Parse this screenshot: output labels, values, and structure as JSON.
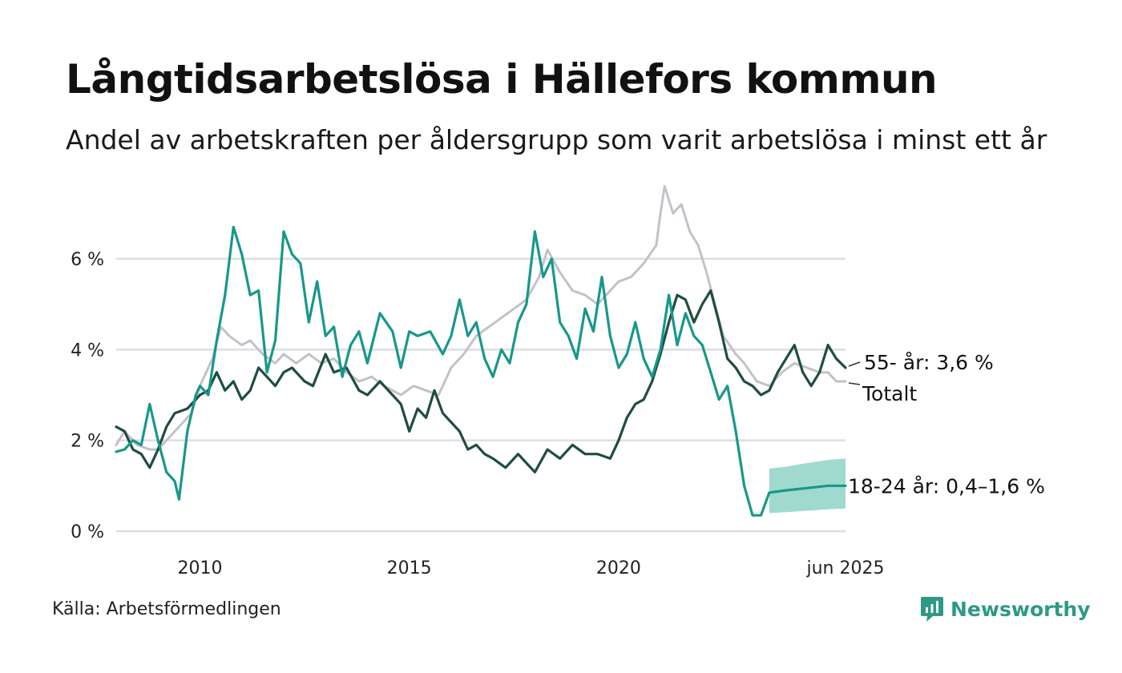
{
  "title": "Långtidsarbetslösa i Hällefors kommun",
  "subtitle": "Andel av arbetskraften per åldersgrupp som varit arbetslösa i minst ett år",
  "source": "Källa: Arbetsförmedlingen",
  "brand": {
    "name": "Newsworthy",
    "icon": "newsworthy-logo-icon"
  },
  "colors": {
    "totalt": "#c3c2cb",
    "age55": "#1f4d40",
    "age18_24": "#17988a",
    "band": "#8fd3c6",
    "grid": "#dedee2"
  },
  "chart_data": {
    "type": "line",
    "y_unit": "%",
    "ylim": [
      0,
      7.5
    ],
    "yticks": [
      {
        "value": 0,
        "label": "0 %"
      },
      {
        "value": 2,
        "label": "2 %"
      },
      {
        "value": 4,
        "label": "4 %"
      },
      {
        "value": 6,
        "label": "6 %"
      }
    ],
    "xlim": [
      2008.0,
      2025.42
    ],
    "xticks": [
      {
        "value": 2010,
        "label": "2010"
      },
      {
        "value": 2015,
        "label": "2015"
      },
      {
        "value": 2020,
        "label": "2020"
      },
      {
        "value": 2025.42,
        "label": "jun 2025"
      }
    ],
    "grid": true,
    "series": [
      {
        "key": "totalt",
        "label": "Totalt",
        "points": [
          [
            2008.0,
            1.9
          ],
          [
            2008.2,
            2.2
          ],
          [
            2008.5,
            1.9
          ],
          [
            2008.8,
            1.8
          ],
          [
            2009.0,
            1.8
          ],
          [
            2009.3,
            2.1
          ],
          [
            2009.6,
            2.4
          ],
          [
            2009.8,
            2.6
          ],
          [
            2010.0,
            3.2
          ],
          [
            2010.3,
            3.8
          ],
          [
            2010.5,
            4.5
          ],
          [
            2010.7,
            4.3
          ],
          [
            2011.0,
            4.1
          ],
          [
            2011.2,
            4.2
          ],
          [
            2011.5,
            3.9
          ],
          [
            2011.8,
            3.7
          ],
          [
            2012.0,
            3.9
          ],
          [
            2012.3,
            3.7
          ],
          [
            2012.6,
            3.9
          ],
          [
            2012.9,
            3.7
          ],
          [
            2013.2,
            3.8
          ],
          [
            2013.5,
            3.5
          ],
          [
            2013.8,
            3.3
          ],
          [
            2014.1,
            3.4
          ],
          [
            2014.4,
            3.2
          ],
          [
            2014.8,
            3.0
          ],
          [
            2015.1,
            3.2
          ],
          [
            2015.4,
            3.1
          ],
          [
            2015.7,
            3.0
          ],
          [
            2016.0,
            3.6
          ],
          [
            2016.3,
            3.9
          ],
          [
            2016.6,
            4.3
          ],
          [
            2016.9,
            4.5
          ],
          [
            2017.2,
            4.7
          ],
          [
            2017.5,
            4.9
          ],
          [
            2017.8,
            5.1
          ],
          [
            2018.1,
            5.6
          ],
          [
            2018.3,
            6.2
          ],
          [
            2018.6,
            5.7
          ],
          [
            2018.9,
            5.3
          ],
          [
            2019.2,
            5.2
          ],
          [
            2019.5,
            5.0
          ],
          [
            2019.8,
            5.3
          ],
          [
            2020.0,
            5.5
          ],
          [
            2020.3,
            5.6
          ],
          [
            2020.6,
            5.9
          ],
          [
            2020.9,
            6.3
          ],
          [
            2021.0,
            7.0
          ],
          [
            2021.1,
            7.6
          ],
          [
            2021.3,
            7.0
          ],
          [
            2021.5,
            7.2
          ],
          [
            2021.7,
            6.6
          ],
          [
            2021.9,
            6.3
          ],
          [
            2022.1,
            5.7
          ],
          [
            2022.3,
            5.0
          ],
          [
            2022.5,
            4.3
          ],
          [
            2022.8,
            3.9
          ],
          [
            2023.0,
            3.7
          ],
          [
            2023.3,
            3.3
          ],
          [
            2023.6,
            3.2
          ],
          [
            2023.9,
            3.5
          ],
          [
            2024.2,
            3.7
          ],
          [
            2024.5,
            3.6
          ],
          [
            2024.8,
            3.5
          ],
          [
            2025.0,
            3.5
          ],
          [
            2025.2,
            3.3
          ],
          [
            2025.42,
            3.3
          ]
        ]
      },
      {
        "key": "age55",
        "label": "55- år: 3,6 %",
        "points": [
          [
            2008.0,
            2.3
          ],
          [
            2008.2,
            2.2
          ],
          [
            2008.4,
            1.8
          ],
          [
            2008.6,
            1.7
          ],
          [
            2008.8,
            1.4
          ],
          [
            2009.0,
            1.8
          ],
          [
            2009.2,
            2.3
          ],
          [
            2009.4,
            2.6
          ],
          [
            2009.7,
            2.7
          ],
          [
            2010.0,
            3.0
          ],
          [
            2010.2,
            3.1
          ],
          [
            2010.4,
            3.5
          ],
          [
            2010.6,
            3.1
          ],
          [
            2010.8,
            3.3
          ],
          [
            2011.0,
            2.9
          ],
          [
            2011.2,
            3.1
          ],
          [
            2011.4,
            3.6
          ],
          [
            2011.6,
            3.4
          ],
          [
            2011.8,
            3.2
          ],
          [
            2012.0,
            3.5
          ],
          [
            2012.2,
            3.6
          ],
          [
            2012.5,
            3.3
          ],
          [
            2012.7,
            3.2
          ],
          [
            2013.0,
            3.9
          ],
          [
            2013.2,
            3.5
          ],
          [
            2013.5,
            3.6
          ],
          [
            2013.8,
            3.1
          ],
          [
            2014.0,
            3.0
          ],
          [
            2014.3,
            3.3
          ],
          [
            2014.6,
            3.0
          ],
          [
            2014.8,
            2.8
          ],
          [
            2015.0,
            2.2
          ],
          [
            2015.2,
            2.7
          ],
          [
            2015.4,
            2.5
          ],
          [
            2015.6,
            3.1
          ],
          [
            2015.8,
            2.6
          ],
          [
            2016.0,
            2.4
          ],
          [
            2016.2,
            2.2
          ],
          [
            2016.4,
            1.8
          ],
          [
            2016.6,
            1.9
          ],
          [
            2016.8,
            1.7
          ],
          [
            2017.0,
            1.6
          ],
          [
            2017.3,
            1.4
          ],
          [
            2017.6,
            1.7
          ],
          [
            2017.8,
            1.5
          ],
          [
            2018.0,
            1.3
          ],
          [
            2018.3,
            1.8
          ],
          [
            2018.6,
            1.6
          ],
          [
            2018.9,
            1.9
          ],
          [
            2019.2,
            1.7
          ],
          [
            2019.5,
            1.7
          ],
          [
            2019.8,
            1.6
          ],
          [
            2020.0,
            2.0
          ],
          [
            2020.2,
            2.5
          ],
          [
            2020.4,
            2.8
          ],
          [
            2020.6,
            2.9
          ],
          [
            2020.8,
            3.3
          ],
          [
            2021.0,
            3.9
          ],
          [
            2021.2,
            4.6
          ],
          [
            2021.4,
            5.2
          ],
          [
            2021.6,
            5.1
          ],
          [
            2021.8,
            4.6
          ],
          [
            2022.0,
            5.0
          ],
          [
            2022.2,
            5.3
          ],
          [
            2022.4,
            4.6
          ],
          [
            2022.6,
            3.8
          ],
          [
            2022.8,
            3.6
          ],
          [
            2023.0,
            3.3
          ],
          [
            2023.2,
            3.2
          ],
          [
            2023.4,
            3.0
          ],
          [
            2023.6,
            3.1
          ],
          [
            2023.8,
            3.5
          ],
          [
            2024.0,
            3.8
          ],
          [
            2024.2,
            4.1
          ],
          [
            2024.4,
            3.5
          ],
          [
            2024.6,
            3.2
          ],
          [
            2024.8,
            3.5
          ],
          [
            2025.0,
            4.1
          ],
          [
            2025.2,
            3.8
          ],
          [
            2025.42,
            3.6
          ]
        ]
      },
      {
        "key": "age18_24",
        "label": "18-24 år: 0,4–1,6 %",
        "points": [
          [
            2008.0,
            1.75
          ],
          [
            2008.2,
            1.8
          ],
          [
            2008.4,
            2.0
          ],
          [
            2008.6,
            1.9
          ],
          [
            2008.8,
            2.8
          ],
          [
            2009.0,
            2.0
          ],
          [
            2009.2,
            1.3
          ],
          [
            2009.4,
            1.1
          ],
          [
            2009.5,
            0.7
          ],
          [
            2009.7,
            2.2
          ],
          [
            2009.9,
            3.0
          ],
          [
            2010.0,
            3.2
          ],
          [
            2010.2,
            3.0
          ],
          [
            2010.4,
            4.2
          ],
          [
            2010.6,
            5.2
          ],
          [
            2010.8,
            6.7
          ],
          [
            2011.0,
            6.1
          ],
          [
            2011.2,
            5.2
          ],
          [
            2011.4,
            5.3
          ],
          [
            2011.6,
            3.5
          ],
          [
            2011.8,
            4.2
          ],
          [
            2012.0,
            6.6
          ],
          [
            2012.2,
            6.1
          ],
          [
            2012.4,
            5.9
          ],
          [
            2012.6,
            4.6
          ],
          [
            2012.8,
            5.5
          ],
          [
            2013.0,
            4.3
          ],
          [
            2013.2,
            4.5
          ],
          [
            2013.4,
            3.4
          ],
          [
            2013.6,
            4.1
          ],
          [
            2013.8,
            4.4
          ],
          [
            2014.0,
            3.7
          ],
          [
            2014.3,
            4.8
          ],
          [
            2014.6,
            4.4
          ],
          [
            2014.8,
            3.6
          ],
          [
            2015.0,
            4.4
          ],
          [
            2015.2,
            4.3
          ],
          [
            2015.5,
            4.4
          ],
          [
            2015.8,
            3.9
          ],
          [
            2016.0,
            4.3
          ],
          [
            2016.2,
            5.1
          ],
          [
            2016.4,
            4.3
          ],
          [
            2016.6,
            4.6
          ],
          [
            2016.8,
            3.8
          ],
          [
            2017.0,
            3.4
          ],
          [
            2017.2,
            4.0
          ],
          [
            2017.4,
            3.7
          ],
          [
            2017.6,
            4.6
          ],
          [
            2017.8,
            5.0
          ],
          [
            2018.0,
            6.6
          ],
          [
            2018.2,
            5.6
          ],
          [
            2018.4,
            6.0
          ],
          [
            2018.6,
            4.6
          ],
          [
            2018.8,
            4.3
          ],
          [
            2019.0,
            3.8
          ],
          [
            2019.2,
            4.9
          ],
          [
            2019.4,
            4.4
          ],
          [
            2019.6,
            5.6
          ],
          [
            2019.8,
            4.3
          ],
          [
            2020.0,
            3.6
          ],
          [
            2020.2,
            3.9
          ],
          [
            2020.4,
            4.6
          ],
          [
            2020.6,
            3.8
          ],
          [
            2020.8,
            3.4
          ],
          [
            2021.0,
            4.0
          ],
          [
            2021.2,
            5.2
          ],
          [
            2021.4,
            4.1
          ],
          [
            2021.6,
            4.8
          ],
          [
            2021.8,
            4.3
          ],
          [
            2022.0,
            4.1
          ],
          [
            2022.2,
            3.5
          ],
          [
            2022.4,
            2.9
          ],
          [
            2022.6,
            3.2
          ],
          [
            2022.8,
            2.2
          ],
          [
            2023.0,
            1.0
          ],
          [
            2023.2,
            0.35
          ],
          [
            2023.4,
            0.35
          ],
          [
            2023.6,
            0.85
          ],
          [
            2024.0,
            0.9
          ],
          [
            2024.5,
            0.95
          ],
          [
            2025.0,
            1.0
          ],
          [
            2025.42,
            1.0
          ]
        ],
        "band": [
          [
            2023.6,
            0.4,
            1.38
          ],
          [
            2024.0,
            0.42,
            1.42
          ],
          [
            2024.5,
            0.45,
            1.5
          ],
          [
            2025.0,
            0.48,
            1.57
          ],
          [
            2025.42,
            0.5,
            1.6
          ]
        ]
      }
    ]
  }
}
